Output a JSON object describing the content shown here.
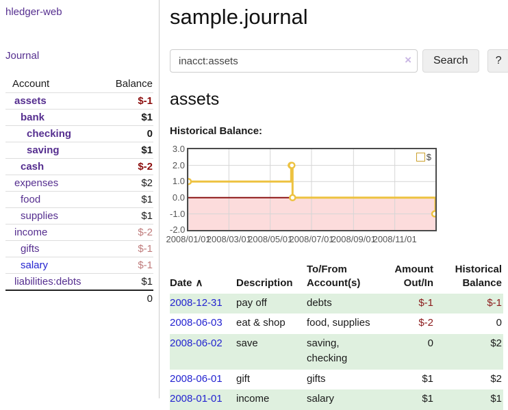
{
  "app": {
    "brand": "hledger-web",
    "nav_journal": "Journal"
  },
  "colors": {
    "link_purple": "#552e8f",
    "link_blue": "#2323d0",
    "negative_strong": "#8b0c0c",
    "negative_soft": "#bf7b7b",
    "row_green": "#dff0df",
    "chart_gold": "#edc240",
    "chart_pink": "#fcdcdc",
    "zero_line_red": "#8b1515",
    "gridline": "#d5d5d5"
  },
  "sidebar": {
    "header": {
      "account": "Account",
      "balance": "Balance"
    },
    "accounts": [
      {
        "name": "assets",
        "balance": "$-1",
        "indent": 0,
        "bold": true,
        "balance_class": "neg-strong",
        "blue": false
      },
      {
        "name": "bank",
        "balance": "$1",
        "indent": 1,
        "bold": true,
        "balance_class": "",
        "blue": false
      },
      {
        "name": "checking",
        "balance": "0",
        "indent": 2,
        "bold": true,
        "balance_class": "",
        "blue": false
      },
      {
        "name": "saving",
        "balance": "$1",
        "indent": 2,
        "bold": true,
        "balance_class": "",
        "blue": false
      },
      {
        "name": "cash",
        "balance": "$-2",
        "indent": 1,
        "bold": true,
        "balance_class": "neg-strong",
        "blue": false
      },
      {
        "name": "expenses",
        "balance": "$2",
        "indent": 0,
        "bold": false,
        "balance_class": "",
        "blue": false
      },
      {
        "name": "food",
        "balance": "$1",
        "indent": 1,
        "bold": false,
        "balance_class": "",
        "blue": false
      },
      {
        "name": "supplies",
        "balance": "$1",
        "indent": 1,
        "bold": false,
        "balance_class": "",
        "blue": false
      },
      {
        "name": "income",
        "balance": "$-2",
        "indent": 0,
        "bold": false,
        "balance_class": "neg-soft",
        "blue": false
      },
      {
        "name": "gifts",
        "balance": "$-1",
        "indent": 1,
        "bold": false,
        "balance_class": "neg-soft",
        "blue": false
      },
      {
        "name": "salary",
        "balance": "$-1",
        "indent": 1,
        "bold": false,
        "balance_class": "neg-soft",
        "blue": true
      },
      {
        "name": "liabilities:debts",
        "balance": "$1",
        "indent": 0,
        "bold": false,
        "balance_class": "",
        "blue": false
      }
    ],
    "total": "0"
  },
  "header": {
    "title": "sample.journal"
  },
  "search": {
    "value": "inacct:assets",
    "clear_icon": "×",
    "button": "Search",
    "help_button": "?"
  },
  "main": {
    "account_title": "assets",
    "section_label": "Historical Balance:"
  },
  "chart_data": {
    "type": "line",
    "style": "step",
    "title": "Historical Balance of assets",
    "xlabel": "",
    "ylabel": "",
    "x_unit": "days from 2008-01-01",
    "xlim": [
      0,
      365
    ],
    "ylim": [
      -2.0,
      3.0
    ],
    "grid": true,
    "legend_position": "top-right",
    "legend": {
      "label": "$",
      "swatch_color": "#edc240"
    },
    "y_ticks": [
      {
        "label": "3.0",
        "value": 3
      },
      {
        "label": "2.0",
        "value": 2
      },
      {
        "label": "1.0",
        "value": 1
      },
      {
        "label": "0.0",
        "value": 0
      },
      {
        "label": "-1.0",
        "value": -1
      },
      {
        "label": "-2.0",
        "value": -2
      }
    ],
    "x_ticks": [
      {
        "label": "2008/01/01",
        "day": 0
      },
      {
        "label": "2008/03/01",
        "day": 60
      },
      {
        "label": "2008/05/01",
        "day": 121
      },
      {
        "label": "2008/07/01",
        "day": 182
      },
      {
        "label": "2008/09/01",
        "day": 244
      },
      {
        "label": "2008/11/01",
        "day": 305
      }
    ],
    "negative_region": {
      "from": 0,
      "to": -2,
      "fill": "#fcdcdc",
      "zero_line_color": "#8b1515"
    },
    "series": [
      {
        "name": "$",
        "color": "#edc240",
        "marker": "open-circle",
        "points": [
          {
            "date": "2008-01-01",
            "day": 0,
            "value": 1
          },
          {
            "date": "2008-06-01",
            "day": 152,
            "value": 2
          },
          {
            "date": "2008-06-02",
            "day": 153,
            "value": 2
          },
          {
            "date": "2008-06-03",
            "day": 154,
            "value": 0
          },
          {
            "date": "2008-12-31",
            "day": 365,
            "value": -1
          }
        ]
      }
    ]
  },
  "register": {
    "sort_icon": "∧",
    "columns": [
      "Date",
      "Description",
      "To/From Account(s)",
      "Amount Out/In",
      "Historical Balance"
    ],
    "rows": [
      {
        "date": "2008-12-31",
        "description": "pay off",
        "accounts": "debts",
        "amount": "$-1",
        "amount_class": "neg",
        "balance": "$-1",
        "balance_class": "neg"
      },
      {
        "date": "2008-06-03",
        "description": "eat & shop",
        "accounts": "food, supplies",
        "amount": "$-2",
        "amount_class": "neg",
        "balance": "0",
        "balance_class": ""
      },
      {
        "date": "2008-06-02",
        "description": "save",
        "accounts": "saving, checking",
        "amount": "0",
        "amount_class": "",
        "balance": "$2",
        "balance_class": ""
      },
      {
        "date": "2008-06-01",
        "description": "gift",
        "accounts": "gifts",
        "amount": "$1",
        "amount_class": "",
        "balance": "$2",
        "balance_class": ""
      },
      {
        "date": "2008-01-01",
        "description": "income",
        "accounts": "salary",
        "amount": "$1",
        "amount_class": "",
        "balance": "$1",
        "balance_class": ""
      }
    ]
  }
}
